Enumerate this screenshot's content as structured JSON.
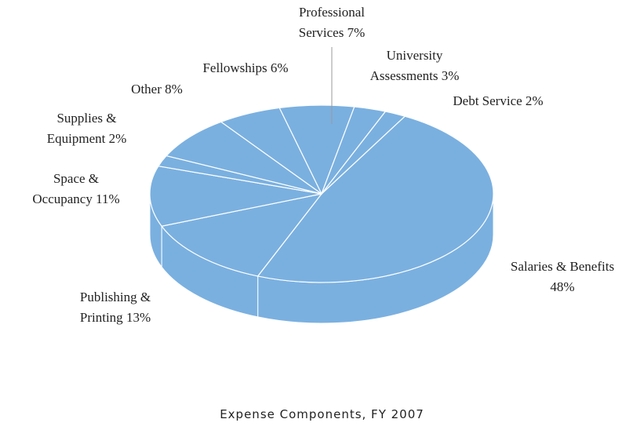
{
  "chart_data": {
    "type": "pie",
    "title": "Expense Components, FY 2007",
    "categories": [
      "Salaries & Benefits",
      "Publishing & Printing",
      "Space & Occupancy",
      "Supplies & Equipment",
      "Other",
      "Fellowships",
      "Professional Services",
      "University Assessments",
      "Debt Service"
    ],
    "values": [
      48,
      13,
      11,
      2,
      8,
      6,
      7,
      3,
      2
    ],
    "value_labels": [
      "48%",
      "13%",
      "11%",
      "2%",
      "8%",
      "6%",
      "7%",
      "3%",
      "2%"
    ],
    "color": "#7ab0e0"
  }
}
